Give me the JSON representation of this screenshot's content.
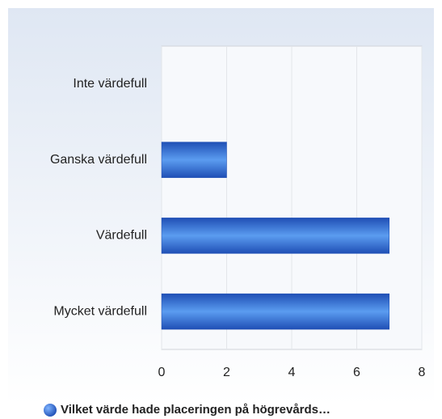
{
  "chart_data": {
    "type": "bar",
    "orientation": "horizontal",
    "categories": [
      "Inte värdefull",
      "Ganska värdefull",
      "Värdefull",
      "Mycket värdefull"
    ],
    "series": [
      {
        "name": "Vilket värde hade placeringen på högrevårds…",
        "color": "#1f4fb5",
        "values": [
          0,
          2,
          7,
          7
        ]
      }
    ],
    "xlim": [
      0,
      8
    ],
    "xticks": [
      0,
      2,
      4,
      6,
      8
    ],
    "grid": true
  }
}
